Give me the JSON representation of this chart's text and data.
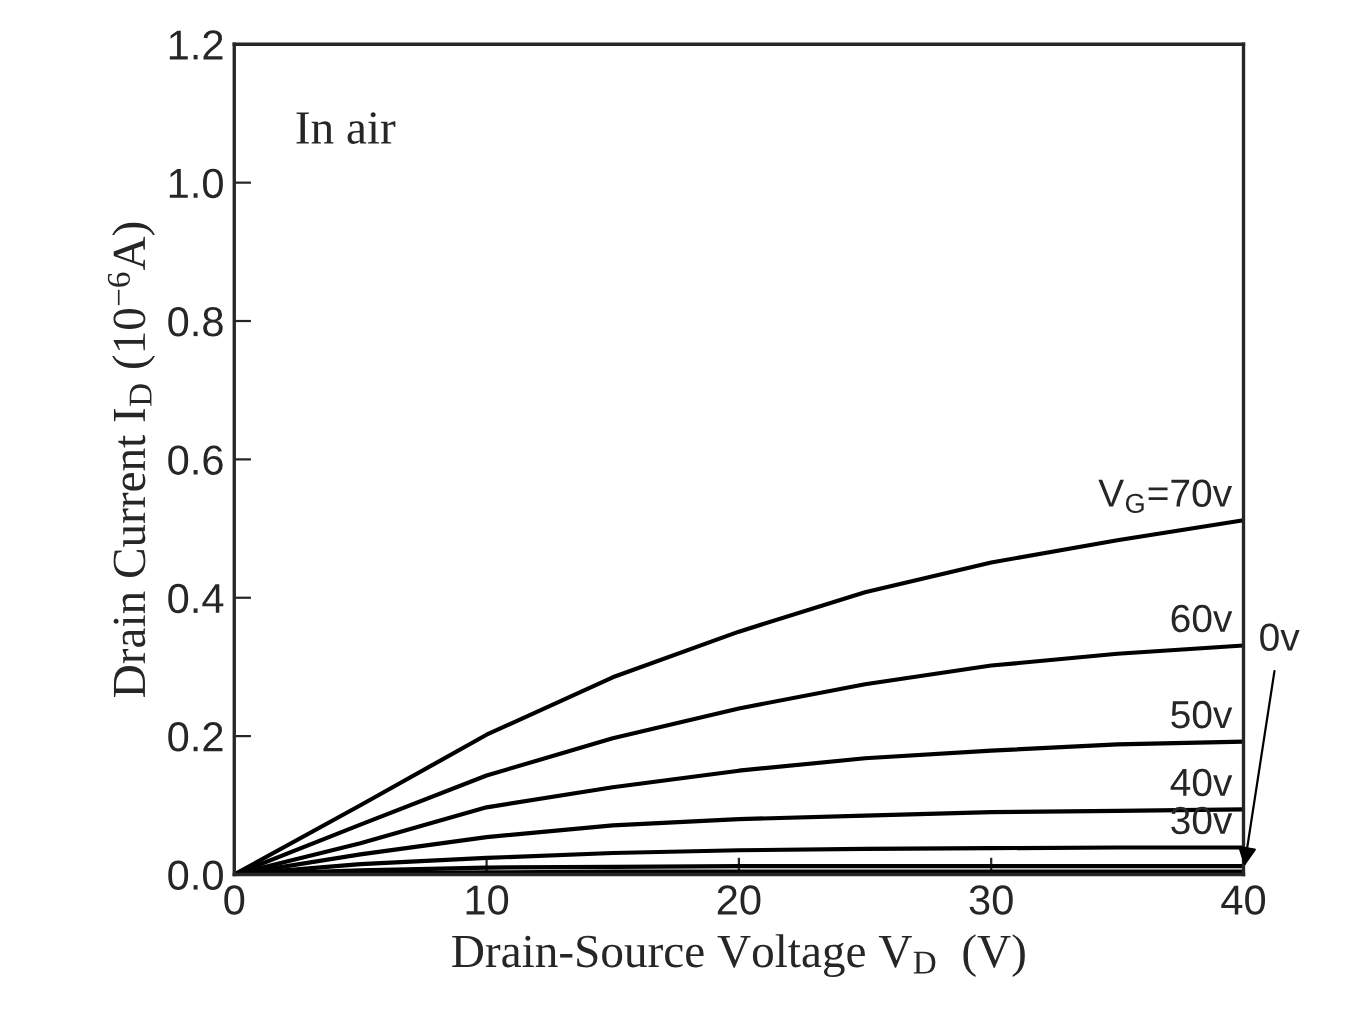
{
  "chart_data": {
    "type": "line",
    "xlabel": "Drain-Source Voltage V$_{D}$  (V)",
    "ylabel": "Drain Current I$_{D}$ (10$^{−6}$A)",
    "x": [
      0,
      5,
      10,
      15,
      20,
      25,
      30,
      35,
      40
    ],
    "series": [
      {
        "name": "V$_{G}$=70v",
        "color": "#000000",
        "values": [
          0,
          0.1,
          0.202,
          0.285,
          0.351,
          0.408,
          0.451,
          0.483,
          0.512
        ]
      },
      {
        "name": "60v",
        "color": "#000000",
        "values": [
          0,
          0.072,
          0.143,
          0.197,
          0.24,
          0.275,
          0.302,
          0.319,
          0.331
        ]
      },
      {
        "name": "50v",
        "color": "#000000",
        "values": [
          0,
          0.045,
          0.097,
          0.126,
          0.15,
          0.168,
          0.179,
          0.188,
          0.192
        ]
      },
      {
        "name": "40v",
        "color": "#000000",
        "values": [
          0,
          0.029,
          0.054,
          0.071,
          0.08,
          0.085,
          0.09,
          0.092,
          0.094
        ]
      },
      {
        "name": "30v",
        "color": "#000000",
        "values": [
          0,
          0.015,
          0.024,
          0.031,
          0.035,
          0.037,
          0.038,
          0.039,
          0.039
        ]
      },
      {
        "color": "#000000",
        "values": [
          0,
          0.006,
          0.01,
          0.011,
          0.012,
          0.012,
          0.012,
          0.012,
          0.012
        ]
      },
      {
        "name": "0v",
        "color": "#000000",
        "values": [
          0,
          0.002,
          0.003,
          0.004,
          0.004,
          0.004,
          0.004,
          0.004,
          0.004
        ]
      }
    ],
    "xlim": [
      0,
      40
    ],
    "xticks": [
      0,
      10,
      20,
      30,
      40
    ],
    "ylim": [
      0,
      1.2
    ],
    "yticks": [
      {
        "value": 0,
        "label": "0.0"
      },
      {
        "value": 0.2,
        "label": "0.2"
      },
      {
        "value": 0.4,
        "label": "0.4"
      },
      {
        "value": 0.6,
        "label": "0.6"
      },
      {
        "value": 0.8,
        "label": "0.8"
      },
      {
        "value": 1.0,
        "label": "1.0"
      },
      {
        "value": 1.2,
        "label": "1.2"
      }
    ],
    "annotations": [
      "In air"
    ],
    "grid": false,
    "legend": false,
    "marker": "none",
    "line_style": "solid"
  }
}
